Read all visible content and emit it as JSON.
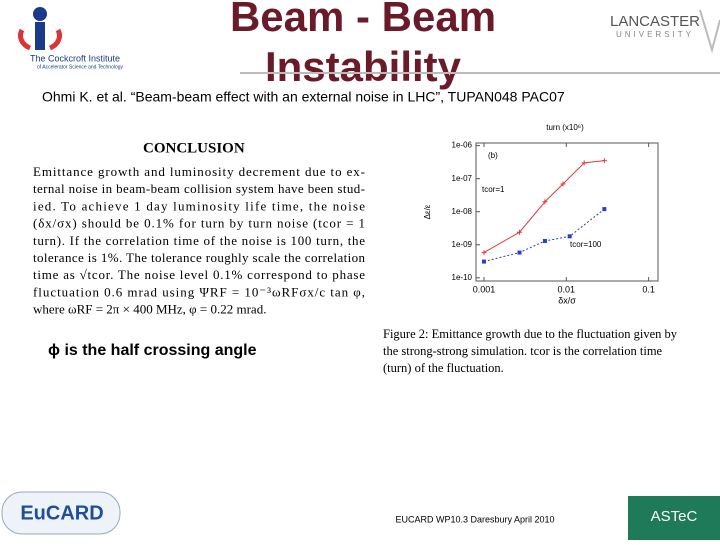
{
  "header": {
    "title_lines": [
      "Beam - Beam",
      "Instability"
    ],
    "citation": "Ohmi K. et al. “Beam-beam effect with an external noise in LHC”, TUPAN048 PAC07",
    "logo_left": {
      "name": "The Cockcroft Institute",
      "subtitle": "of Accelerator Science and Technology"
    },
    "logo_right": {
      "name": "LANCASTER",
      "subtitle": "UNIVERSITY"
    }
  },
  "conclusion": {
    "heading": "CONCLUSION",
    "lines": [
      "Emittance growth and luminosity decrement due to ex-",
      "ternal noise in beam-beam collision system have been stud-",
      "ied.   To achieve 1 day luminosity life time, the noise",
      "(δx/σx) should be 0.1% for turn by turn noise (tcor = 1",
      "turn).  If the correlation time of the noise is 100 turn, the",
      "tolerance is 1%.  The tolerance roughly scale the correlation",
      "time as √tcor.  The noise level 0.1% correspond to phase",
      "fluctuation 0.6 mrad using ΨRF = 10⁻³ωRFσx/c tan φ,",
      "where ωRF = 2π × 400 MHz, φ = 0.22 mrad."
    ]
  },
  "note": "ϕ is the half crossing angle",
  "figure": {
    "type": "line",
    "top_label": "turn (x10⁶)",
    "x_label": "δx/σ",
    "y_label": "Δε/ε",
    "panel": "(b)",
    "log_x": true,
    "log_y": true,
    "xlim": [
      0.0008,
      0.13
    ],
    "xticks": [
      0.001,
      0.01,
      0.1
    ],
    "ylim": [
      8e-11,
      1.2e-06
    ],
    "yticks": [
      {
        "value": 1e-06,
        "label": "1e-06"
      },
      {
        "value": 1e-07,
        "label": "1e-07"
      },
      {
        "value": 1e-08,
        "label": "1e-08"
      },
      {
        "value": 1e-09,
        "label": "1e-09"
      },
      {
        "value": 1e-10,
        "label": "1e-10"
      }
    ],
    "series": [
      {
        "name": "tcor=1",
        "color": "#e23b3b",
        "x": [
          0.001,
          0.0027,
          0.0055,
          0.0091,
          0.0165,
          0.029
        ],
        "values": [
          5.8e-10,
          2.4e-09,
          2e-08,
          6.9e-08,
          3e-07,
          3.5e-07
        ]
      },
      {
        "name": "tcor=100",
        "color": "#2a3fd0",
        "x": [
          0.001,
          0.0027,
          0.0055,
          0.011,
          0.029
        ],
        "values": [
          3.1e-10,
          5.8e-10,
          1.3e-09,
          1.8e-09,
          1.2e-08
        ]
      }
    ],
    "caption_lines": [
      "Figure 2: Emittance growth due to the fluctuation given by",
      "the strong-strong simulation. tcor is the correlation time",
      "(turn) of the fluctuation."
    ]
  },
  "footer": {
    "text": "EUCARD WP10.3 Daresbury April 2010",
    "logo_left": "EuCARD",
    "logo_right": "ASTeC"
  }
}
